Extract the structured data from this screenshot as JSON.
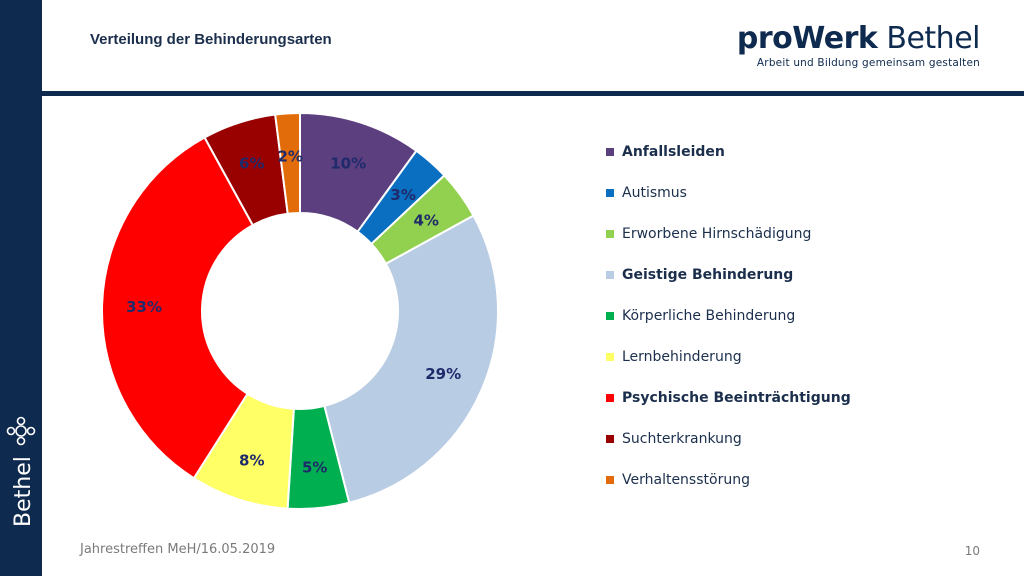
{
  "slide": {
    "title": "Verteilung der Behinderungsarten",
    "footer": "Jahrestreffen MeH/16.05.2019",
    "page_number": "10"
  },
  "brand": {
    "name_bold": "proWerk",
    "name_light": " Bethel",
    "tagline": "Arbeit und Bildung gemeinsam gestalten",
    "sidebar_logo_text": "Bethel",
    "color": "#0f2a4f"
  },
  "chart_data": {
    "type": "pie",
    "donut": true,
    "label_color": "#1f2a6b",
    "legend_placement": "right",
    "slices": [
      {
        "label": "Anfallsleiden",
        "value": 10,
        "display": "10%",
        "color": "#5b3f7f",
        "bold": true
      },
      {
        "label": "Autismus",
        "value": 3,
        "display": "3%",
        "color": "#0a6fc0",
        "bold": false
      },
      {
        "label": "Erworbene Hirnschädigung",
        "value": 4,
        "display": "4%",
        "color": "#92d050",
        "bold": false
      },
      {
        "label": "Geistige Behinderung",
        "value": 29,
        "display": "29%",
        "color": "#b8cce4",
        "bold": true
      },
      {
        "label": "Körperliche Behinderung",
        "value": 5,
        "display": "5%",
        "color": "#00b050",
        "bold": false
      },
      {
        "label": "Lernbehinderung",
        "value": 8,
        "display": "8%",
        "color": "#ffff66",
        "bold": false
      },
      {
        "label": "Psychische Beeinträchtigung",
        "value": 33,
        "display": "33%",
        "color": "#ff0000",
        "bold": true
      },
      {
        "label": "Suchterkrankung",
        "value": 6,
        "display": "6%",
        "color": "#990000",
        "bold": false
      },
      {
        "label": "Verhaltensstörung",
        "value": 2,
        "display": "2%",
        "color": "#e36c0a",
        "bold": false
      }
    ]
  }
}
